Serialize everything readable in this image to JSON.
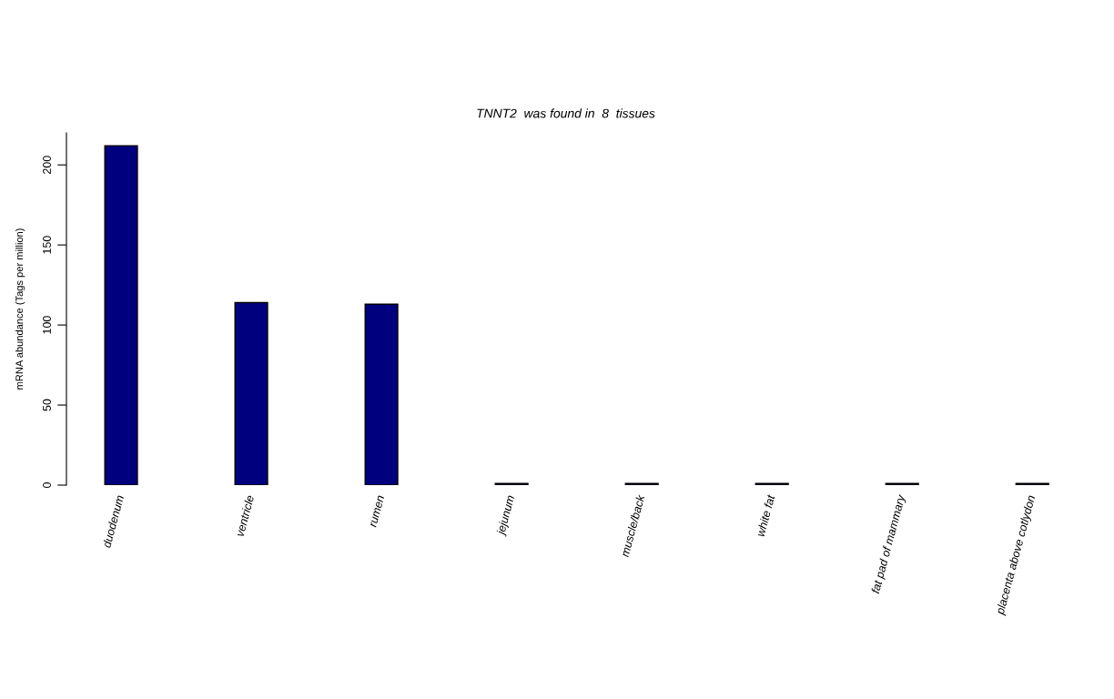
{
  "chart_data": {
    "type": "bar",
    "title": "TNNT2  was found in  8  tissues",
    "ylabel": "mRNA abundance (Tags per million)",
    "categories": [
      "duodenum",
      "ventricle",
      "rumen",
      "jejunum",
      "muscle/back",
      "white fat",
      "fat pad of mammary",
      "placenta above cotlydon"
    ],
    "values": [
      212,
      114,
      113,
      1,
      1,
      1,
      1,
      1
    ],
    "color": "#00007f",
    "ylim": [
      0,
      220
    ],
    "yticks": [
      0,
      50,
      100,
      150,
      200
    ],
    "grid": false,
    "legend": false
  }
}
